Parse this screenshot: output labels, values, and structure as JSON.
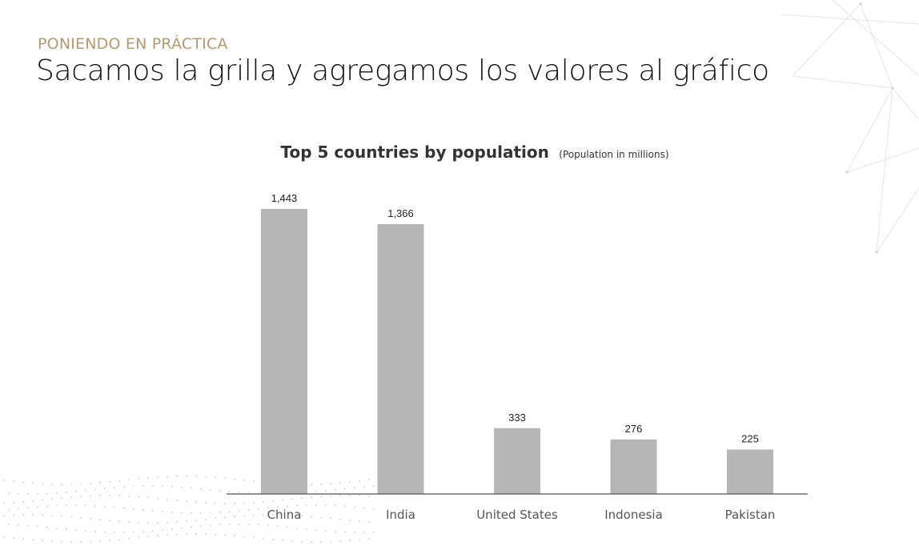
{
  "slide": {
    "kicker": "PONIENDO EN PRÁCTICA",
    "title": "Sacamos la grilla y agregamos los valores al gráfico"
  },
  "colors": {
    "kicker": "#b39a73",
    "bar": "#b6b6b6",
    "axis": "#555555"
  },
  "chart_data": {
    "type": "bar",
    "title": "Top 5 countries by population",
    "subtitle": "(Population in millions)",
    "categories": [
      "China",
      "India",
      "United States",
      "Indonesia",
      "Pakistan"
    ],
    "values": [
      1443,
      1366,
      333,
      276,
      225
    ],
    "value_labels": [
      "1,443",
      "1,366",
      "333",
      "276",
      "225"
    ],
    "xlabel": "",
    "ylabel": "",
    "ylim": [
      0,
      1443
    ],
    "grid": false,
    "legend": "none"
  }
}
